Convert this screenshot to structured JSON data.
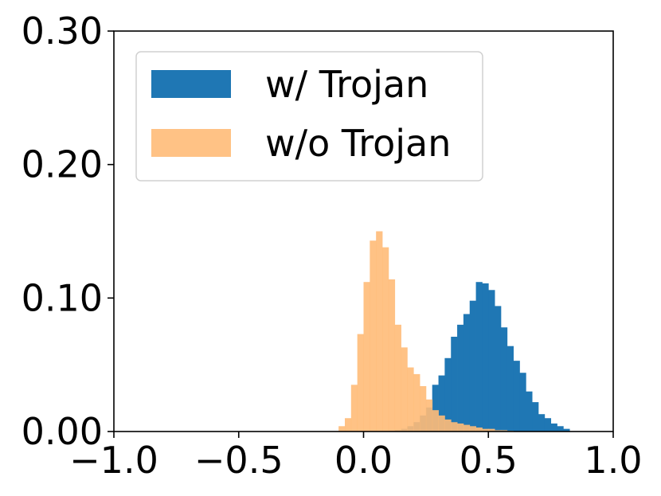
{
  "chart_data": {
    "type": "histogram",
    "title": "",
    "xlabel": "",
    "ylabel": "",
    "xlim": [
      -1.0,
      1.0
    ],
    "ylim": [
      0.0,
      0.3
    ],
    "x_ticks": [
      -1.0,
      -0.5,
      0.0,
      0.5,
      1.0
    ],
    "x_tick_labels": [
      "−1.0",
      "−0.5",
      "0.0",
      "0.5",
      "1.0"
    ],
    "y_ticks": [
      0.0,
      0.1,
      0.2,
      0.3
    ],
    "y_tick_labels": [
      "0.00",
      "0.10",
      "0.20",
      "0.30"
    ],
    "grid": false,
    "legend_position": "top-left",
    "series": [
      {
        "name": "w/ Trojan",
        "color": "#1f77b4",
        "alpha": 1.0,
        "bin_edges": [
          0.1,
          0.125,
          0.15,
          0.175,
          0.2,
          0.225,
          0.25,
          0.275,
          0.3,
          0.325,
          0.35,
          0.375,
          0.4,
          0.425,
          0.45,
          0.475,
          0.5,
          0.525,
          0.55,
          0.575,
          0.6,
          0.625,
          0.65,
          0.675,
          0.7,
          0.725,
          0.75,
          0.775,
          0.8,
          0.825
        ],
        "values": [
          0.0005,
          0.001,
          0.002,
          0.004,
          0.007,
          0.012,
          0.018,
          0.035,
          0.042,
          0.055,
          0.071,
          0.08,
          0.088,
          0.098,
          0.112,
          0.111,
          0.106,
          0.094,
          0.078,
          0.064,
          0.053,
          0.044,
          0.03,
          0.022,
          0.013,
          0.01,
          0.006,
          0.004,
          0.002
        ]
      },
      {
        "name": "w/o Trojan",
        "color": "#ffbb78",
        "alpha": 0.9,
        "bin_edges": [
          -0.1,
          -0.075,
          -0.05,
          -0.025,
          0.0,
          0.025,
          0.05,
          0.075,
          0.1,
          0.125,
          0.15,
          0.175,
          0.2,
          0.225,
          0.25,
          0.275,
          0.3,
          0.325,
          0.35,
          0.375,
          0.4,
          0.425,
          0.45,
          0.475,
          0.5,
          0.525,
          0.55,
          0.575,
          0.6
        ],
        "values": [
          0.004,
          0.01,
          0.035,
          0.073,
          0.112,
          0.143,
          0.15,
          0.138,
          0.114,
          0.08,
          0.063,
          0.048,
          0.043,
          0.034,
          0.024,
          0.016,
          0.012,
          0.009,
          0.007,
          0.006,
          0.005,
          0.004,
          0.003,
          0.002,
          0.002,
          0.001,
          0.001,
          0.0005
        ]
      }
    ]
  }
}
